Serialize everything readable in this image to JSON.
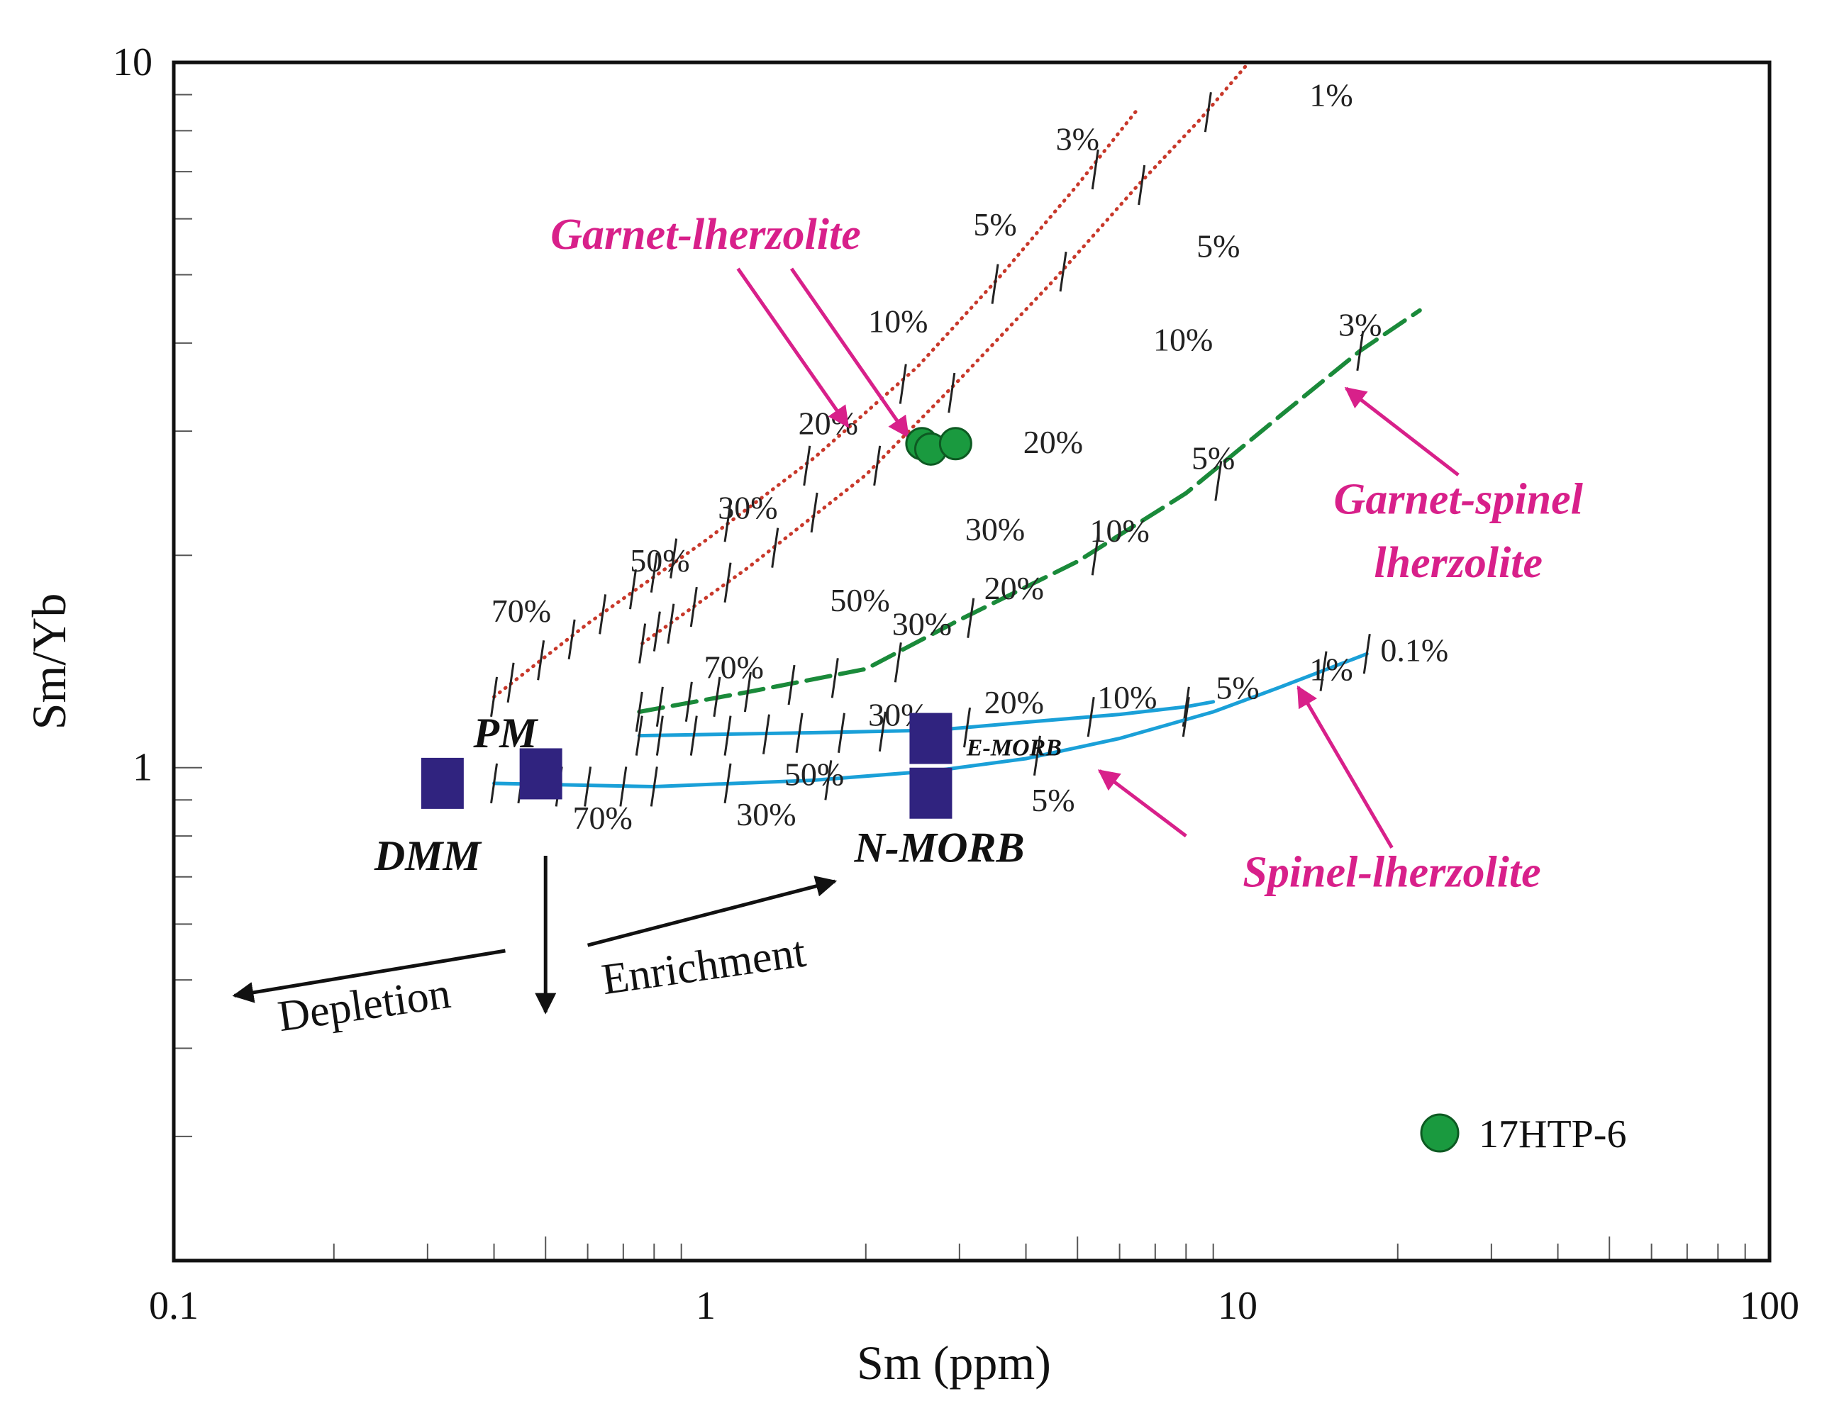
{
  "chart_data": {
    "type": "scatter",
    "x_scale": "log",
    "y_scale": "log",
    "xlabel": "Sm (ppm)",
    "ylabel": "Sm/Yb",
    "xlim": [
      0.1,
      100
    ],
    "ylim": [
      0.2,
      10
    ],
    "x_ticks": [
      {
        "value": 0.1,
        "label": "0.1"
      },
      {
        "value": 1,
        "label": "1"
      },
      {
        "value": 10,
        "label": "10"
      },
      {
        "value": 100,
        "label": "100"
      }
    ],
    "y_ticks": [
      {
        "value": 1,
        "label": "1"
      },
      {
        "value": 10,
        "label": "10"
      }
    ],
    "legend": {
      "position": "bottom-right",
      "label": "17HTP-6",
      "color": "#1a9a3f"
    },
    "series": [
      {
        "name": "17HTP-6",
        "color": "#1a9a3f",
        "points": [
          [
            2.55,
            2.88
          ],
          [
            2.65,
            2.83
          ],
          [
            2.95,
            2.88
          ]
        ]
      }
    ],
    "sources": [
      {
        "name": "DMM",
        "x": 0.32,
        "y": 0.95,
        "label": "DMM",
        "label_pos": [
          0.3,
          0.75
        ]
      },
      {
        "name": "PM",
        "x": 0.49,
        "y": 0.98,
        "label": "PM",
        "label_pos": [
          0.42,
          1.12
        ]
      },
      {
        "name": "E-MORB",
        "x": 2.65,
        "y": 1.1,
        "label": "E-MORB",
        "label_pos": [
          3.8,
          1.09
        ]
      },
      {
        "name": "N-MORB",
        "x": 2.65,
        "y": 0.92,
        "label": "N-MORB",
        "label_pos": [
          2.75,
          0.77
        ]
      }
    ],
    "source_color": "#30237f",
    "curves": [
      {
        "name": "Garnet-lherzolite (1)",
        "style": "dotted",
        "color": "#c8382a",
        "points": [
          [
            0.4,
            1.26
          ],
          [
            0.6,
            1.6
          ],
          [
            1.0,
            2.1
          ],
          [
            1.6,
            2.75
          ],
          [
            2.5,
            3.7
          ],
          [
            3.6,
            5.0
          ],
          [
            5.0,
            6.7
          ],
          [
            6.5,
            8.6
          ]
        ],
        "ticks": [
          [
            0.4,
            1.26
          ],
          [
            0.43,
            1.32
          ],
          [
            0.49,
            1.42
          ],
          [
            0.56,
            1.52
          ],
          [
            0.64,
            1.65
          ],
          [
            0.73,
            1.79
          ],
          [
            0.8,
            1.89
          ],
          [
            0.87,
            1.98
          ],
          [
            1.1,
            2.23
          ],
          [
            1.55,
            2.68
          ],
          [
            2.35,
            3.5
          ],
          [
            3.5,
            4.85
          ],
          [
            5.4,
            7.05
          ]
        ],
        "labels": [
          {
            "text": "70%",
            "at": [
              0.45,
              1.67
            ]
          },
          {
            "text": "50%",
            "at": [
              0.82,
              1.97
            ]
          },
          {
            "text": "30%",
            "at": [
              1.2,
              2.34
            ]
          },
          {
            "text": "20%",
            "at": [
              1.7,
              3.08
            ]
          },
          {
            "text": "10%",
            "at": [
              2.3,
              4.3
            ]
          },
          {
            "text": "5%",
            "at": [
              3.5,
              5.9
            ]
          },
          {
            "text": "3%",
            "at": [
              5.0,
              7.8
            ]
          }
        ]
      },
      {
        "name": "Garnet-lherzolite (2)",
        "style": "dotted",
        "color": "#c8382a",
        "points": [
          [
            0.76,
            1.5
          ],
          [
            1.2,
            1.92
          ],
          [
            2.0,
            2.6
          ],
          [
            3.0,
            3.55
          ],
          [
            4.5,
            4.9
          ],
          [
            6.5,
            6.7
          ],
          [
            8.5,
            8.3
          ],
          [
            10.5,
            10.0
          ]
        ],
        "ticks": [
          [
            0.76,
            1.5
          ],
          [
            0.81,
            1.56
          ],
          [
            0.86,
            1.6
          ],
          [
            0.95,
            1.69
          ],
          [
            1.1,
            1.83
          ],
          [
            1.35,
            2.05
          ],
          [
            1.6,
            2.3
          ],
          [
            2.1,
            2.68
          ],
          [
            2.9,
            3.4
          ],
          [
            4.7,
            5.05
          ],
          [
            6.6,
            6.7
          ],
          [
            8.8,
            8.5
          ]
        ],
        "labels": [
          {
            "text": "50%",
            "at": [
              1.95,
              1.73
            ]
          },
          {
            "text": "30%",
            "at": [
              3.5,
              2.18
            ]
          },
          {
            "text": "20%",
            "at": [
              4.5,
              2.9
            ]
          },
          {
            "text": "10%",
            "at": [
              7.9,
              4.05
            ]
          },
          {
            "text": "5%",
            "at": [
              9.2,
              5.5
            ]
          },
          {
            "text": "1%",
            "at": [
              15.0,
              9.0
            ]
          }
        ]
      },
      {
        "name": "Garnet-spinel lherzolite",
        "style": "dashed",
        "color": "#1a8a3a",
        "points": [
          [
            0.75,
            1.2
          ],
          [
            1.2,
            1.28
          ],
          [
            2.0,
            1.38
          ],
          [
            3.0,
            1.62
          ],
          [
            5.0,
            1.96
          ],
          [
            8.0,
            2.45
          ],
          [
            12.0,
            3.15
          ],
          [
            17.0,
            3.9
          ],
          [
            22.0,
            4.45
          ]
        ],
        "ticks": [
          [
            0.75,
            1.2
          ],
          [
            0.82,
            1.22
          ],
          [
            0.93,
            1.24
          ],
          [
            1.05,
            1.26
          ],
          [
            1.2,
            1.28
          ],
          [
            1.45,
            1.31
          ],
          [
            1.75,
            1.34
          ],
          [
            2.3,
            1.41
          ],
          [
            3.15,
            1.63
          ],
          [
            5.4,
            2.0
          ],
          [
            9.2,
            2.55
          ],
          [
            17.0,
            3.9
          ]
        ],
        "labels": [
          {
            "text": "70%",
            "at": [
              1.13,
              1.39
            ]
          },
          {
            "text": "30%",
            "at": [
              2.55,
              1.6
            ]
          },
          {
            "text": "20%",
            "at": [
              3.8,
              1.8
            ]
          },
          {
            "text": "10%",
            "at": [
              6.0,
              2.17
            ]
          },
          {
            "text": "5%",
            "at": [
              9.0,
              2.75
            ]
          },
          {
            "text": "3%",
            "at": [
              17.0,
              4.25
            ]
          }
        ]
      },
      {
        "name": "Spinel-lherzolite (1)",
        "style": "solid",
        "color": "#1aa0d8",
        "points": [
          [
            0.75,
            1.11
          ],
          [
            1.5,
            1.12
          ],
          [
            2.7,
            1.13
          ],
          [
            4.0,
            1.16
          ],
          [
            6.0,
            1.19
          ],
          [
            8.0,
            1.22
          ],
          [
            9.0,
            1.24
          ]
        ],
        "ticks": [
          [
            0.75,
            1.11
          ],
          [
            0.82,
            1.11
          ],
          [
            0.95,
            1.11
          ],
          [
            1.1,
            1.11
          ],
          [
            1.3,
            1.115
          ],
          [
            1.5,
            1.12
          ],
          [
            1.8,
            1.12
          ],
          [
            2.15,
            1.125
          ],
          [
            3.1,
            1.14
          ],
          [
            5.3,
            1.18
          ],
          [
            8.0,
            1.22
          ]
        ],
        "labels": [
          {
            "text": "30%",
            "at": [
              2.3,
              1.19
            ]
          },
          {
            "text": "20%",
            "at": [
              3.8,
              1.24
            ]
          },
          {
            "text": "10%",
            "at": [
              6.2,
              1.26
            ]
          },
          {
            "text": "5%",
            "at": [
              10.0,
              1.3
            ]
          },
          {
            "text": "1%",
            "at": [
              15.0,
              1.38
            ]
          },
          {
            "text": "0.1%",
            "at": [
              21.5,
              1.47
            ]
          }
        ]
      },
      {
        "name": "Spinel-lherzolite (2)",
        "style": "solid",
        "color": "#1aa0d8",
        "points": [
          [
            0.4,
            0.95
          ],
          [
            0.8,
            0.94
          ],
          [
            1.6,
            0.96
          ],
          [
            2.7,
            0.99
          ],
          [
            4.0,
            1.03
          ],
          [
            6.0,
            1.1
          ],
          [
            9.0,
            1.2
          ],
          [
            12.0,
            1.3
          ],
          [
            17.5,
            1.45
          ]
        ],
        "ticks": [
          [
            0.4,
            0.95
          ],
          [
            0.45,
            0.95
          ],
          [
            0.53,
            0.94
          ],
          [
            0.6,
            0.94
          ],
          [
            0.7,
            0.94
          ],
          [
            0.8,
            0.94
          ],
          [
            1.1,
            0.95
          ],
          [
            1.7,
            0.96
          ],
          [
            4.2,
            1.04
          ],
          [
            8.0,
            1.18
          ],
          [
            14.5,
            1.37
          ],
          [
            17.5,
            1.45
          ]
        ],
        "labels": [
          {
            "text": "70%",
            "at": [
              0.64,
              0.85
            ]
          },
          {
            "text": "50%",
            "at": [
              1.6,
              0.98
            ]
          },
          {
            "text": "30%",
            "at": [
              1.3,
              0.86
            ]
          },
          {
            "text": "5%",
            "at": [
              4.5,
              0.9
            ]
          }
        ]
      }
    ],
    "annotations": [
      {
        "text": "Garnet-lherzolite",
        "at": [
          1.0,
          5.7
        ],
        "type": "mag"
      },
      {
        "text": "Garnet-spinel",
        "at": [
          26.0,
          2.4
        ],
        "type": "mag"
      },
      {
        "text": "lherzolite",
        "at": [
          26.0,
          1.95
        ],
        "type": "mag"
      },
      {
        "text": "Spinel-lherzolite",
        "at": [
          19.5,
          0.71
        ],
        "type": "mag"
      }
    ],
    "magenta_arrows": [
      {
        "from": [
          1.15,
          5.1
        ],
        "to": [
          1.85,
          3.05
        ]
      },
      {
        "from": [
          1.45,
          5.1
        ],
        "to": [
          2.4,
          2.95
        ]
      },
      {
        "from": [
          26.0,
          2.6
        ],
        "to": [
          16.0,
          3.45
        ]
      },
      {
        "from": [
          19.5,
          0.77
        ],
        "to": [
          13.0,
          1.3
        ]
      },
      {
        "from": [
          8.0,
          0.8
        ],
        "to": [
          5.5,
          0.99
        ]
      }
    ],
    "process_arrows": {
      "depletion": {
        "label": "Depletion",
        "from": [
          0.42,
          0.55
        ],
        "to": [
          0.13,
          0.475
        ]
      },
      "vertical": {
        "from": [
          0.5,
          0.75
        ],
        "to": [
          0.5,
          0.45
        ]
      },
      "enrichment": {
        "label": "Enrichment",
        "from": [
          0.6,
          0.56
        ],
        "to": [
          1.75,
          0.69
        ]
      }
    }
  }
}
